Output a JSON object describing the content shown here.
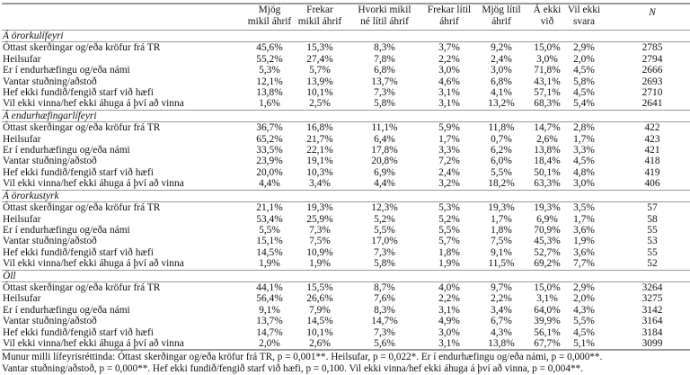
{
  "columns": [
    "Mjög mikil áhrif",
    "Frekar mikil áhrif",
    "Hvorki mikil né lítil áhrif",
    "Frekar lítil áhrif",
    "Mjög lítil áhrif",
    "Á ekki við",
    "Vil ekki svara",
    "N"
  ],
  "column_lines": [
    [
      "Mjög",
      "mikil áhrif"
    ],
    [
      "Frekar",
      "mikil áhrif"
    ],
    [
      "Hvorki mikil",
      "né lítil áhrif"
    ],
    [
      "Frekar lítil",
      "áhrif"
    ],
    [
      "Mjög lítil",
      "áhrif"
    ],
    [
      "Á ekki",
      "við"
    ],
    [
      "Vil ekki",
      "svara"
    ],
    [
      "N",
      ""
    ]
  ],
  "sections": [
    {
      "title": "Á örorkulífeyri",
      "rows": [
        {
          "label": "Óttast skerðingar og/eða kröfur frá TR",
          "values": [
            "45,6%",
            "15,3%",
            "8,3%",
            "3,7%",
            "9,2%",
            "15,0%",
            "2,9%",
            "2785"
          ]
        },
        {
          "label": "Heilsufar",
          "values": [
            "55,2%",
            "27,4%",
            "7,8%",
            "2,2%",
            "2,4%",
            "3,0%",
            "2,0%",
            "2794"
          ]
        },
        {
          "label": "Er í endurhæfingu og/eða námi",
          "values": [
            "5,3%",
            "5,7%",
            "6,8%",
            "3,0%",
            "3,0%",
            "71,8%",
            "4,5%",
            "2666"
          ]
        },
        {
          "label": "Vantar stuðning/aðstoð",
          "values": [
            "12,1%",
            "13,9%",
            "13,7%",
            "4,6%",
            "6,8%",
            "43,1%",
            "5,8%",
            "2693"
          ]
        },
        {
          "label": "Hef ekki fundið/fengið starf við hæfi",
          "values": [
            "13,8%",
            "10,1%",
            "7,3%",
            "3,1%",
            "4,1%",
            "57,1%",
            "4,5%",
            "2710"
          ]
        },
        {
          "label": "Vil ekki vinna/hef ekki áhuga á því að vinna",
          "values": [
            "1,6%",
            "2,5%",
            "5,8%",
            "3,1%",
            "13,2%",
            "68,3%",
            "5,4%",
            "2641"
          ]
        }
      ]
    },
    {
      "title": "Á endurhæfingarlífeyri",
      "rows": [
        {
          "label": "Óttast skerðingar og/eða kröfur frá TR",
          "values": [
            "36,7%",
            "16,8%",
            "11,1%",
            "5,9%",
            "11,8%",
            "14,7%",
            "2,8%",
            "422"
          ]
        },
        {
          "label": "Heilsufar",
          "values": [
            "65,2%",
            "21,7%",
            "6,4%",
            "1,7%",
            "0,7%",
            "2,6%",
            "1,7%",
            "423"
          ]
        },
        {
          "label": "Er í endurhæfingu og/eða námi",
          "values": [
            "33,5%",
            "22,1%",
            "17,8%",
            "3,3%",
            "6,2%",
            "13,8%",
            "3,3%",
            "421"
          ]
        },
        {
          "label": "Vantar stuðning/aðstoð",
          "values": [
            "23,9%",
            "19,1%",
            "20,8%",
            "7,2%",
            "6,0%",
            "18,4%",
            "4,5%",
            "418"
          ]
        },
        {
          "label": "Hef ekki fundið/fengið starf við hæfi",
          "values": [
            "20,0%",
            "10,3%",
            "6,9%",
            "2,4%",
            "5,5%",
            "50,1%",
            "4,8%",
            "419"
          ]
        },
        {
          "label": "Vil ekki vinna/hef ekki áhuga á því að vinna",
          "values": [
            "4,4%",
            "3,4%",
            "4,4%",
            "3,2%",
            "18,2%",
            "63,3%",
            "3,0%",
            "406"
          ]
        }
      ]
    },
    {
      "title": "Á örorkustyrk",
      "rows": [
        {
          "label": "Óttast skerðingar og/eða kröfur frá TR",
          "values": [
            "21,1%",
            "19,3%",
            "12,3%",
            "5,3%",
            "19,3%",
            "19,3%",
            "3,5%",
            "57"
          ]
        },
        {
          "label": "Heilsufar",
          "values": [
            "53,4%",
            "25,9%",
            "5,2%",
            "5,2%",
            "1,7%",
            "6,9%",
            "1,7%",
            "58"
          ]
        },
        {
          "label": "Er í endurhæfingu og/eða námi",
          "values": [
            "5,5%",
            "7,3%",
            "5,5%",
            "5,5%",
            "1,8%",
            "70,9%",
            "3,6%",
            "55"
          ]
        },
        {
          "label": "Vantar stuðning/aðstoð",
          "values": [
            "15,1%",
            "7,5%",
            "17,0%",
            "5,7%",
            "7,5%",
            "45,3%",
            "1,9%",
            "53"
          ]
        },
        {
          "label": "Hef ekki fundið/fengið starf við hæfi",
          "values": [
            "14,5%",
            "10,9%",
            "7,3%",
            "1,8%",
            "9,1%",
            "52,7%",
            "3,6%",
            "55"
          ]
        },
        {
          "label": "Vil ekki vinna/hef ekki áhuga á því að vinna",
          "values": [
            "1,9%",
            "1,9%",
            "5,8%",
            "1,9%",
            "11,5%",
            "69,2%",
            "7,7%",
            "52"
          ]
        }
      ]
    },
    {
      "title": "Öll",
      "rows": [
        {
          "label": "Óttast skerðingar og/eða kröfur frá TR",
          "values": [
            "44,1%",
            "15,5%",
            "8,7%",
            "4,0%",
            "9,7%",
            "15,0%",
            "2,9%",
            "3264"
          ]
        },
        {
          "label": "Heilsufar",
          "values": [
            "56,4%",
            "26,6%",
            "7,6%",
            "2,2%",
            "2,2%",
            "3,1%",
            "2,0%",
            "3275"
          ]
        },
        {
          "label": "Er í endurhæfingu og/eða námi",
          "values": [
            "9,1%",
            "7,9%",
            "8,3%",
            "3,1%",
            "3,4%",
            "64,0%",
            "4,3%",
            "3142"
          ]
        },
        {
          "label": "Vantar stuðning/aðstoð",
          "values": [
            "13,7%",
            "14,5%",
            "14,7%",
            "4,9%",
            "6,7%",
            "39,9%",
            "5,5%",
            "3164"
          ]
        },
        {
          "label": "Hef ekki fundið/fengið starf við hæfi",
          "values": [
            "14,7%",
            "10,1%",
            "7,3%",
            "3,0%",
            "4,3%",
            "56,1%",
            "4,5%",
            "3184"
          ]
        },
        {
          "label": "Vil ekki vinna/hef ekki áhuga á því að vinna",
          "values": [
            "2,0%",
            "2,6%",
            "5,6%",
            "3,1%",
            "13,8%",
            "67,7%",
            "5,1%",
            "3099"
          ]
        }
      ]
    }
  ],
  "footnote": [
    "Munur milli lífeyrisréttinda: Óttast skerðingar og/eða kröfur frá TR, p = 0,001**. Heilsufar, p = 0,022*. Er í endurhæfingu og/eða námi, p = 0,000**.",
    "Vantar stuðning/aðstoð, p = 0,000**. Hef ekki fundið/fengið starf við hæfi, p = 0,100. Vil ekki vinna/hef ekki áhuga á því að vinna, p = 0,004**."
  ]
}
